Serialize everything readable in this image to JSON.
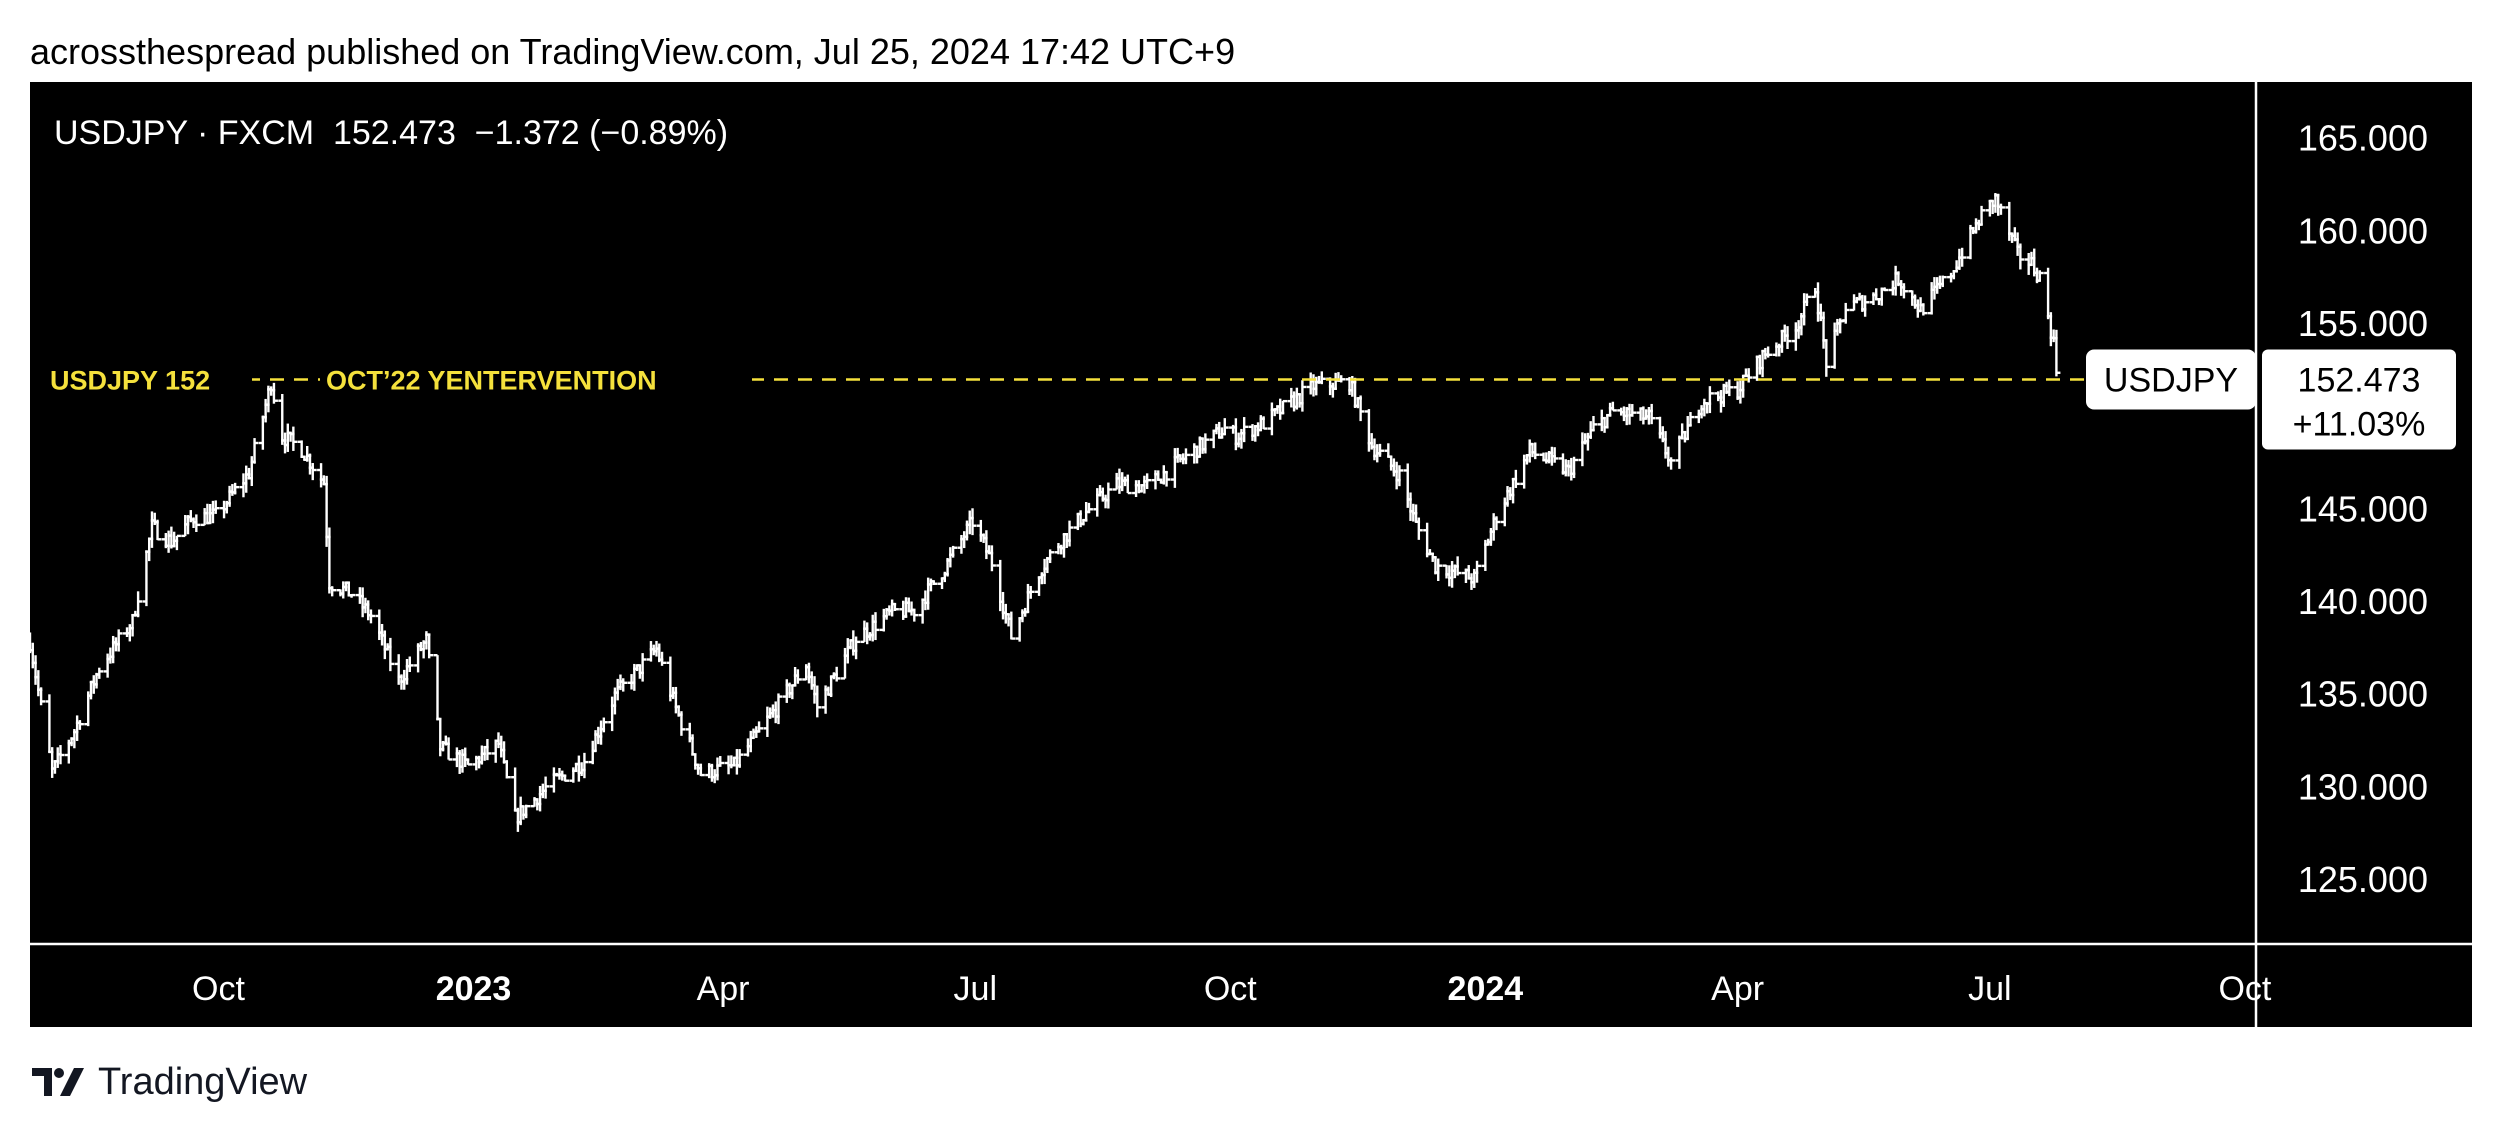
{
  "header": {
    "publish_line": "acrossthespread published on TradingView.com, Jul 25, 2024 17:42 UTC+9"
  },
  "footer": {
    "brand": "TradingView"
  },
  "colors": {
    "background": "#000000",
    "bars": "#ffffff",
    "annotation": "#f5e13c",
    "axis_text": "#ffffff"
  },
  "chart_data": {
    "type": "ohlc-bar",
    "legend": "USDJPY · FXCM  152.473  −1.372 (−0.89%)",
    "symbol": "USDJPY",
    "exchange": "FXCM",
    "last_price": "152.473",
    "change": "−1.372",
    "change_pct": "(−0.89%)",
    "price_scale": {
      "ylim": [
        121.5,
        168
      ],
      "ticks": [
        "165.000",
        "160.000",
        "155.000",
        "145.000",
        "140.000",
        "135.000",
        "130.000",
        "125.000"
      ],
      "tick_values": [
        165,
        160,
        155,
        145,
        140,
        135,
        130,
        125
      ]
    },
    "time_scale": {
      "range": [
        "2022-07-25",
        "2024-10-05"
      ],
      "ticks": [
        {
          "date": "2022-10-01",
          "label": "Oct",
          "bold": false
        },
        {
          "date": "2023-01-01",
          "label": "2023",
          "bold": true
        },
        {
          "date": "2023-04-01",
          "label": "Apr",
          "bold": false
        },
        {
          "date": "2023-07-01",
          "label": "Jul",
          "bold": false
        },
        {
          "date": "2023-10-01",
          "label": "Oct",
          "bold": false
        },
        {
          "date": "2024-01-01",
          "label": "2024",
          "bold": true
        },
        {
          "date": "2024-04-01",
          "label": "Apr",
          "bold": false
        },
        {
          "date": "2024-07-01",
          "label": "Jul",
          "bold": false
        },
        {
          "date": "2024-10-01",
          "label": "Oct",
          "bold": false
        }
      ]
    },
    "horizontal_line": {
      "value": 151.95,
      "label_left": "USDJPY 152",
      "label_mid": "OCT’22 YENTERVENTION"
    },
    "price_label": {
      "symbol": "USDJPY",
      "price": "152.473",
      "change_pct": "+11.03%"
    },
    "anchors": [
      [
        "2022-07-25",
        137.8
      ],
      [
        "2022-08-02",
        130.8
      ],
      [
        "2022-08-10",
        133.0
      ],
      [
        "2022-08-19",
        136.4
      ],
      [
        "2022-08-31",
        138.9
      ],
      [
        "2022-09-07",
        144.0
      ],
      [
        "2022-09-14",
        143.2
      ],
      [
        "2022-09-22",
        144.5
      ],
      [
        "2022-09-30",
        144.6
      ],
      [
        "2022-10-12",
        146.9
      ],
      [
        "2022-10-20",
        151.8
      ],
      [
        "2022-10-24",
        148.9
      ],
      [
        "2022-10-31",
        148.2
      ],
      [
        "2022-11-08",
        146.4
      ],
      [
        "2022-11-10",
        141.0
      ],
      [
        "2022-11-18",
        140.4
      ],
      [
        "2022-11-25",
        139.2
      ],
      [
        "2022-12-05",
        135.7
      ],
      [
        "2022-12-15",
        137.9
      ],
      [
        "2022-12-20",
        132.1
      ],
      [
        "2022-12-30",
        131.1
      ],
      [
        "2023-01-10",
        132.3
      ],
      [
        "2023-01-16",
        128.3
      ],
      [
        "2023-01-27",
        129.9
      ],
      [
        "2023-02-10",
        131.4
      ],
      [
        "2023-02-21",
        134.9
      ],
      [
        "2023-03-08",
        137.4
      ],
      [
        "2023-03-15",
        134.2
      ],
      [
        "2023-03-24",
        130.7
      ],
      [
        "2023-04-05",
        131.1
      ],
      [
        "2023-04-20",
        134.2
      ],
      [
        "2023-05-01",
        136.6
      ],
      [
        "2023-05-05",
        134.3
      ],
      [
        "2023-05-19",
        138.0
      ],
      [
        "2023-06-01",
        139.4
      ],
      [
        "2023-06-09",
        139.5
      ],
      [
        "2023-06-20",
        141.8
      ],
      [
        "2023-06-30",
        144.3
      ],
      [
        "2023-07-07",
        142.1
      ],
      [
        "2023-07-14",
        138.1
      ],
      [
        "2023-07-24",
        141.6
      ],
      [
        "2023-08-01",
        143.3
      ],
      [
        "2023-08-10",
        144.8
      ],
      [
        "2023-08-21",
        146.3
      ],
      [
        "2023-09-01",
        146.2
      ],
      [
        "2023-09-15",
        147.8
      ],
      [
        "2023-09-29",
        149.3
      ],
      [
        "2023-10-03",
        148.9
      ],
      [
        "2023-10-13",
        149.6
      ],
      [
        "2023-10-31",
        151.6
      ],
      [
        "2023-11-13",
        151.8
      ],
      [
        "2023-11-21",
        148.4
      ],
      [
        "2023-12-01",
        146.8
      ],
      [
        "2023-12-07",
        144.1
      ],
      [
        "2023-12-14",
        141.9
      ],
      [
        "2023-12-28",
        141.2
      ],
      [
        "2024-01-05",
        144.6
      ],
      [
        "2024-01-17",
        148.1
      ],
      [
        "2024-01-31",
        147.0
      ],
      [
        "2024-02-09",
        149.3
      ],
      [
        "2024-02-16",
        150.2
      ],
      [
        "2024-02-29",
        149.9
      ],
      [
        "2024-03-08",
        147.5
      ],
      [
        "2024-03-19",
        150.8
      ],
      [
        "2024-04-01",
        151.4
      ],
      [
        "2024-04-10",
        153.2
      ],
      [
        "2024-04-22",
        154.8
      ],
      [
        "2024-04-29",
        157.0
      ],
      [
        "2024-05-03",
        152.9
      ],
      [
        "2024-05-10",
        155.8
      ],
      [
        "2024-05-20",
        156.4
      ],
      [
        "2024-05-29",
        157.4
      ],
      [
        "2024-06-06",
        155.7
      ],
      [
        "2024-06-17",
        157.7
      ],
      [
        "2024-06-28",
        160.8
      ],
      [
        "2024-07-03",
        161.7
      ],
      [
        "2024-07-11",
        158.7
      ],
      [
        "2024-07-16",
        158.2
      ],
      [
        "2024-07-19",
        157.5
      ],
      [
        "2024-07-24",
        153.9
      ],
      [
        "2024-07-25",
        152.47
      ]
    ]
  }
}
